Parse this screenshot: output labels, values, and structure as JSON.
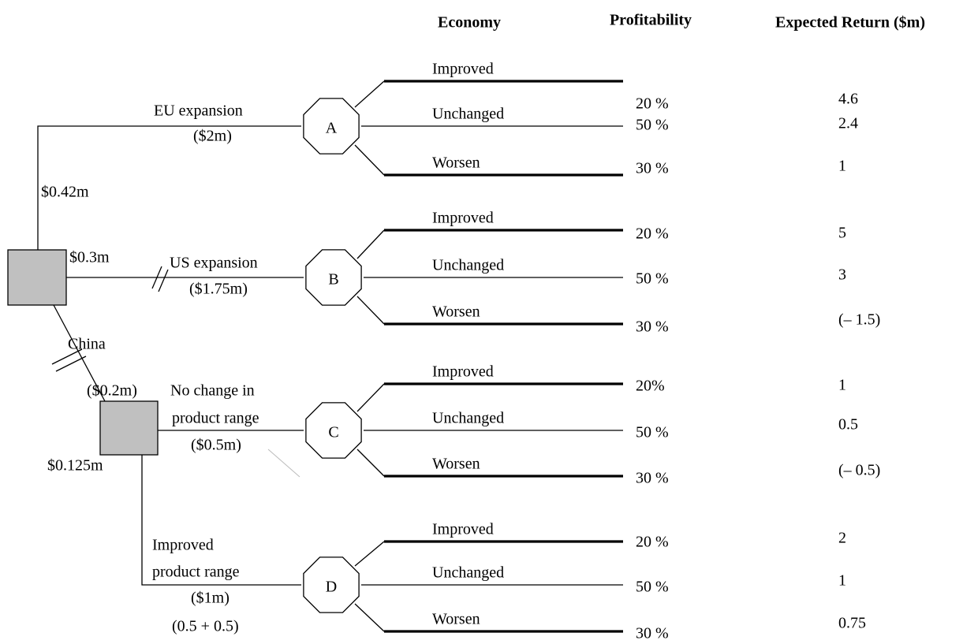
{
  "headers": [
    "Economy",
    "Profitability",
    "Expected Return ($m)"
  ],
  "decisions": {
    "eu_label": "EU expansion",
    "eu_cost": "($2m)",
    "eu_value": "$0.42m",
    "us_value": "$0.3m",
    "us_label": "US expansion",
    "us_cost": "($1.75m)",
    "china_label": "China",
    "china_cost": "($0.2m)",
    "china_value": "$0.125m",
    "nochange_label": [
      "No change in",
      "product range"
    ],
    "nochange_cost": "($0.5m)",
    "improved_label": [
      "Improved",
      "product range"
    ],
    "improved_cost": "($1m)",
    "improved_note": "(0.5 + 0.5)"
  },
  "nodes": [
    {
      "label": "A",
      "branches": [
        {
          "outcome": "Improved",
          "prob": "20 %",
          "ret": "4.6"
        },
        {
          "outcome": "Unchanged",
          "prob": "50 %",
          "ret": "2.4"
        },
        {
          "outcome": "Worsen",
          "prob": "30 %",
          "ret": "1"
        }
      ]
    },
    {
      "label": "B",
      "branches": [
        {
          "outcome": "Improved",
          "prob": "20 %",
          "ret": "5"
        },
        {
          "outcome": "Unchanged",
          "prob": "50 %",
          "ret": "3"
        },
        {
          "outcome": "Worsen",
          "prob": "30 %",
          "ret": "(– 1.5)"
        }
      ]
    },
    {
      "label": "C",
      "branches": [
        {
          "outcome": "Improved",
          "prob": "20%",
          "ret": "1"
        },
        {
          "outcome": "Unchanged",
          "prob": "50 %",
          "ret": "0.5"
        },
        {
          "outcome": "Worsen",
          "prob": "30 %",
          "ret": "(– 0.5)"
        }
      ]
    },
    {
      "label": "D",
      "branches": [
        {
          "outcome": "Improved",
          "prob": "20 %",
          "ret": "2"
        },
        {
          "outcome": "Unchanged",
          "prob": "50 %",
          "ret": "1"
        },
        {
          "outcome": "Worsen",
          "prob": "30 %",
          "ret": "0.75"
        }
      ]
    }
  ]
}
